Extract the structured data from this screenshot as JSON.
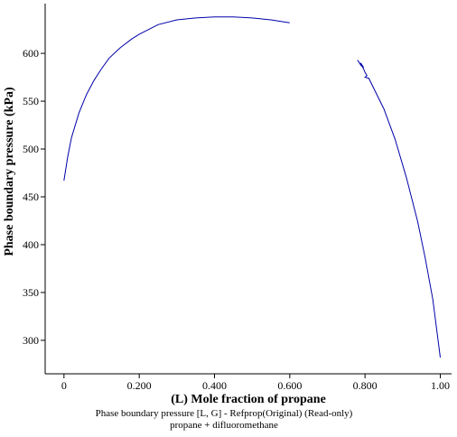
{
  "chart_data": {
    "type": "line",
    "xlabel": "(L) Mole fraction of propane",
    "ylabel": "Phase boundary pressure (kPa)",
    "caption_lines": [
      "Phase boundary pressure [L, G] - Refprop(Original) (Read-only)",
      "propane + difluoromethane"
    ],
    "xlim": [
      -0.05,
      1.03
    ],
    "ylim": [
      265,
      652
    ],
    "x_ticks": [
      {
        "value": 0,
        "label": "0"
      },
      {
        "value": 0.2,
        "label": "0.200"
      },
      {
        "value": 0.4,
        "label": "0.400"
      },
      {
        "value": 0.6,
        "label": "0.600"
      },
      {
        "value": 0.8,
        "label": "0.800"
      },
      {
        "value": 1.0,
        "label": "1.00"
      }
    ],
    "y_ticks": [
      {
        "value": 300,
        "label": "300"
      },
      {
        "value": 350,
        "label": "350"
      },
      {
        "value": 400,
        "label": "400"
      },
      {
        "value": 450,
        "label": "450"
      },
      {
        "value": 500,
        "label": "500"
      },
      {
        "value": 550,
        "label": "550"
      },
      {
        "value": 600,
        "label": "600"
      }
    ],
    "grid": false,
    "line_color": "#0000aa",
    "series": [
      {
        "points": [
          [
            0.0,
            467
          ],
          [
            0.01,
            492
          ],
          [
            0.02,
            512
          ],
          [
            0.04,
            538
          ],
          [
            0.06,
            557
          ],
          [
            0.08,
            572
          ],
          [
            0.1,
            584
          ],
          [
            0.12,
            595
          ],
          [
            0.15,
            606
          ],
          [
            0.18,
            615
          ],
          [
            0.2,
            620
          ],
          [
            0.25,
            630
          ],
          [
            0.3,
            635
          ],
          [
            0.35,
            637
          ],
          [
            0.4,
            638
          ],
          [
            0.45,
            638
          ],
          [
            0.5,
            637
          ],
          [
            0.55,
            635
          ],
          [
            0.6,
            632
          ]
        ]
      },
      {
        "points": [
          [
            0.78,
            593
          ],
          [
            0.785,
            590
          ],
          [
            0.79,
            587
          ],
          [
            0.795,
            586
          ],
          [
            0.79,
            589
          ],
          [
            0.787,
            590
          ],
          [
            0.792,
            587
          ],
          [
            0.797,
            583
          ],
          [
            0.8,
            580
          ],
          [
            0.805,
            577
          ],
          [
            0.8,
            575
          ],
          [
            0.81,
            574
          ],
          [
            0.85,
            542
          ],
          [
            0.88,
            510
          ],
          [
            0.91,
            470
          ],
          [
            0.94,
            424
          ],
          [
            0.96,
            386
          ],
          [
            0.98,
            343
          ],
          [
            1.0,
            282
          ]
        ]
      }
    ]
  }
}
